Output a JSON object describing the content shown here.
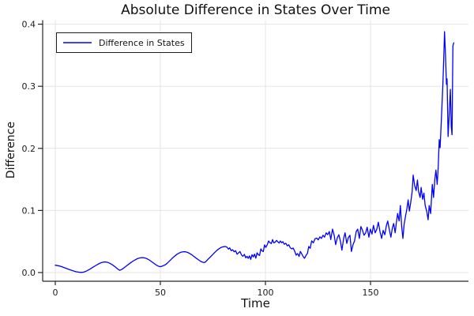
{
  "chart_data": {
    "type": "line",
    "title": "Absolute Difference in States Over Time",
    "xlabel": "Time",
    "ylabel": "Difference",
    "xlim": [
      -6.0,
      196.6
    ],
    "ylim": [
      -0.014,
      0.4065
    ],
    "xticks": [
      0,
      50,
      100,
      150
    ],
    "xtick_labels": [
      "0",
      "50",
      "100",
      "150"
    ],
    "yticks": [
      0.0,
      0.1,
      0.2,
      0.3,
      0.4
    ],
    "ytick_labels": [
      "0.0",
      "0.1",
      "0.2",
      "0.3",
      "0.4"
    ],
    "grid": true,
    "legend_position": "top-left",
    "colors": {
      "line": "#0000ff",
      "grid": "#e4e4e4",
      "axis": "#262626",
      "text": "#1a1a1a",
      "background": "#ffffff"
    },
    "series": [
      {
        "name": "Difference in States",
        "color": "#0000ff",
        "points": [
          [
            0,
            0.0118
          ],
          [
            1,
            0.0112
          ],
          [
            2,
            0.0105
          ],
          [
            3,
            0.0095
          ],
          [
            4,
            0.0083
          ],
          [
            5,
            0.007
          ],
          [
            6,
            0.0057
          ],
          [
            7,
            0.0045
          ],
          [
            8,
            0.0033
          ],
          [
            9,
            0.0022
          ],
          [
            10,
            0.0013
          ],
          [
            11,
            0.0007
          ],
          [
            12,
            0.0003
          ],
          [
            13,
            0.0004
          ],
          [
            14,
            0.0013
          ],
          [
            15,
            0.0028
          ],
          [
            16,
            0.0046
          ],
          [
            17,
            0.0066
          ],
          [
            18,
            0.0087
          ],
          [
            19,
            0.0108
          ],
          [
            20,
            0.0128
          ],
          [
            21,
            0.0146
          ],
          [
            22,
            0.016
          ],
          [
            23,
            0.0169
          ],
          [
            24,
            0.017
          ],
          [
            25,
            0.0163
          ],
          [
            26,
            0.0149
          ],
          [
            27,
            0.0129
          ],
          [
            28,
            0.0104
          ],
          [
            29,
            0.0077
          ],
          [
            30,
            0.005
          ],
          [
            30.7,
            0.0036
          ],
          [
            31.5,
            0.0048
          ],
          [
            32.3,
            0.0066
          ],
          [
            33,
            0.0084
          ],
          [
            34,
            0.011
          ],
          [
            35,
            0.0136
          ],
          [
            36,
            0.0161
          ],
          [
            37,
            0.0184
          ],
          [
            38,
            0.0205
          ],
          [
            39,
            0.0222
          ],
          [
            40,
            0.0234
          ],
          [
            41,
            0.024
          ],
          [
            42,
            0.0239
          ],
          [
            43,
            0.0231
          ],
          [
            44,
            0.0216
          ],
          [
            45,
            0.0196
          ],
          [
            46,
            0.0172
          ],
          [
            47,
            0.0146
          ],
          [
            48,
            0.0122
          ],
          [
            49,
            0.0104
          ],
          [
            49.7,
            0.0096
          ],
          [
            50.5,
            0.0098
          ],
          [
            51.3,
            0.011
          ],
          [
            52,
            0.0118
          ],
          [
            53,
            0.0143
          ],
          [
            54,
            0.0174
          ],
          [
            55,
            0.0207
          ],
          [
            56,
            0.024
          ],
          [
            57,
            0.027
          ],
          [
            58,
            0.0296
          ],
          [
            59,
            0.0316
          ],
          [
            60,
            0.033
          ],
          [
            61,
            0.0336
          ],
          [
            62,
            0.0334
          ],
          [
            63,
            0.0324
          ],
          [
            64,
            0.0307
          ],
          [
            65,
            0.0285
          ],
          [
            66,
            0.0259
          ],
          [
            67,
            0.0233
          ],
          [
            68,
            0.0209
          ],
          [
            69,
            0.0185
          ],
          [
            70,
            0.0168
          ],
          [
            70.8,
            0.016
          ],
          [
            71.5,
            0.0172
          ],
          [
            72.2,
            0.0196
          ],
          [
            73,
            0.0225
          ],
          [
            74,
            0.0258
          ],
          [
            75,
            0.0294
          ],
          [
            76,
            0.0328
          ],
          [
            77,
            0.036
          ],
          [
            78,
            0.0386
          ],
          [
            79,
            0.0406
          ],
          [
            80,
            0.0416
          ],
          [
            81,
            0.042
          ],
          [
            81.7,
            0.0408
          ],
          [
            82.4,
            0.0378
          ],
          [
            83,
            0.0398
          ],
          [
            83.7,
            0.0352
          ],
          [
            84.4,
            0.0368
          ],
          [
            85.1,
            0.0335
          ],
          [
            85.8,
            0.0352
          ],
          [
            86.5,
            0.0295
          ],
          [
            87.2,
            0.0318
          ],
          [
            87.9,
            0.0338
          ],
          [
            88.6,
            0.0282
          ],
          [
            89.3,
            0.0262
          ],
          [
            90,
            0.0292
          ],
          [
            90.6,
            0.0238
          ],
          [
            91.2,
            0.0262
          ],
          [
            91.8,
            0.0228
          ],
          [
            92.4,
            0.0268
          ],
          [
            93,
            0.0212
          ],
          [
            93.6,
            0.0288
          ],
          [
            94.2,
            0.0252
          ],
          [
            94.8,
            0.0296
          ],
          [
            95.4,
            0.0232
          ],
          [
            96,
            0.0318
          ],
          [
            96.6,
            0.0286
          ],
          [
            97.2,
            0.0276
          ],
          [
            97.8,
            0.0382
          ],
          [
            98.4,
            0.0348
          ],
          [
            99,
            0.0338
          ],
          [
            99.6,
            0.0445
          ],
          [
            100.2,
            0.0405
          ],
          [
            100.9,
            0.0452
          ],
          [
            101.5,
            0.0509
          ],
          [
            102.1,
            0.0482
          ],
          [
            102.8,
            0.0467
          ],
          [
            103.4,
            0.0531
          ],
          [
            104,
            0.0478
          ],
          [
            104.6,
            0.0487
          ],
          [
            105.3,
            0.0518
          ],
          [
            105.9,
            0.0495
          ],
          [
            106.5,
            0.0475
          ],
          [
            107.1,
            0.0509
          ],
          [
            107.7,
            0.048
          ],
          [
            108.3,
            0.0498
          ],
          [
            109,
            0.0455
          ],
          [
            109.7,
            0.0472
          ],
          [
            110.4,
            0.043
          ],
          [
            111.1,
            0.0448
          ],
          [
            111.8,
            0.04
          ],
          [
            112.5,
            0.0382
          ],
          [
            113.2,
            0.0395
          ],
          [
            113.9,
            0.0345
          ],
          [
            114.6,
            0.028
          ],
          [
            115.3,
            0.0305
          ],
          [
            116,
            0.026
          ],
          [
            116.6,
            0.034
          ],
          [
            117.3,
            0.03
          ],
          [
            118,
            0.0255
          ],
          [
            118.6,
            0.023
          ],
          [
            119.3,
            0.0275
          ],
          [
            120,
            0.031
          ],
          [
            120.6,
            0.042
          ],
          [
            121.3,
            0.039
          ],
          [
            122,
            0.051
          ],
          [
            122.8,
            0.048
          ],
          [
            123.6,
            0.0545
          ],
          [
            124.4,
            0.0555
          ],
          [
            125.1,
            0.0525
          ],
          [
            125.9,
            0.0575
          ],
          [
            126.6,
            0.055
          ],
          [
            127.4,
            0.06
          ],
          [
            128.1,
            0.057
          ],
          [
            128.9,
            0.064
          ],
          [
            129.6,
            0.061
          ],
          [
            130.4,
            0.066
          ],
          [
            131.1,
            0.053
          ],
          [
            131.9,
            0.07
          ],
          [
            132.7,
            0.06
          ],
          [
            133.4,
            0.045
          ],
          [
            134.2,
            0.056
          ],
          [
            134.9,
            0.061
          ],
          [
            135.7,
            0.05
          ],
          [
            136.4,
            0.036
          ],
          [
            137.2,
            0.055
          ],
          [
            137.9,
            0.064
          ],
          [
            138.7,
            0.047
          ],
          [
            139.4,
            0.056
          ],
          [
            140.2,
            0.06
          ],
          [
            140.9,
            0.034
          ],
          [
            141.7,
            0.045
          ],
          [
            142.4,
            0.051
          ],
          [
            143.2,
            0.066
          ],
          [
            143.9,
            0.07
          ],
          [
            144.7,
            0.055
          ],
          [
            145.4,
            0.074
          ],
          [
            146.2,
            0.068
          ],
          [
            146.9,
            0.06
          ],
          [
            147.7,
            0.064
          ],
          [
            148.4,
            0.073
          ],
          [
            149.2,
            0.057
          ],
          [
            149.9,
            0.07
          ],
          [
            150.7,
            0.062
          ],
          [
            151.4,
            0.076
          ],
          [
            152.2,
            0.064
          ],
          [
            153,
            0.07
          ],
          [
            153.7,
            0.081
          ],
          [
            154.5,
            0.066
          ],
          [
            155.3,
            0.055
          ],
          [
            156,
            0.068
          ],
          [
            156.8,
            0.061
          ],
          [
            157.5,
            0.075
          ],
          [
            158.2,
            0.083
          ],
          [
            159,
            0.068
          ],
          [
            159.7,
            0.057
          ],
          [
            160.4,
            0.072
          ],
          [
            161,
            0.079
          ],
          [
            161.7,
            0.064
          ],
          [
            162.3,
            0.08
          ],
          [
            162.9,
            0.095
          ],
          [
            163.6,
            0.083
          ],
          [
            164.2,
            0.108
          ],
          [
            164.8,
            0.075
          ],
          [
            165.4,
            0.055
          ],
          [
            166,
            0.078
          ],
          [
            166.7,
            0.092
          ],
          [
            167.3,
            0.102
          ],
          [
            167.9,
            0.117
          ],
          [
            168.5,
            0.099
          ],
          [
            169.1,
            0.112
          ],
          [
            169.8,
            0.13
          ],
          [
            170.3,
            0.157
          ],
          [
            171,
            0.14
          ],
          [
            171.7,
            0.132
          ],
          [
            172.3,
            0.149
          ],
          [
            172.9,
            0.13
          ],
          [
            173.6,
            0.121
          ],
          [
            174.1,
            0.137
          ],
          [
            174.8,
            0.118
          ],
          [
            175.4,
            0.128
          ],
          [
            176,
            0.108
          ],
          [
            176.7,
            0.099
          ],
          [
            177.4,
            0.085
          ],
          [
            177.9,
            0.108
          ],
          [
            178.6,
            0.095
          ],
          [
            179.4,
            0.142
          ],
          [
            180,
            0.121
          ],
          [
            180.6,
            0.15
          ],
          [
            181.1,
            0.165
          ],
          [
            181.7,
            0.142
          ],
          [
            182.2,
            0.17
          ],
          [
            182.7,
            0.214
          ],
          [
            183.1,
            0.201
          ],
          [
            183.9,
            0.261
          ],
          [
            184.4,
            0.3
          ],
          [
            184.8,
            0.34
          ],
          [
            185.2,
            0.388
          ],
          [
            185.6,
            0.358
          ],
          [
            186.1,
            0.303
          ],
          [
            186.4,
            0.312
          ],
          [
            186.9,
            0.219
          ],
          [
            187.4,
            0.251
          ],
          [
            188,
            0.295
          ],
          [
            188.4,
            0.235
          ],
          [
            188.8,
            0.222
          ],
          [
            189.2,
            0.365
          ],
          [
            189.6,
            0.37
          ]
        ]
      }
    ]
  }
}
